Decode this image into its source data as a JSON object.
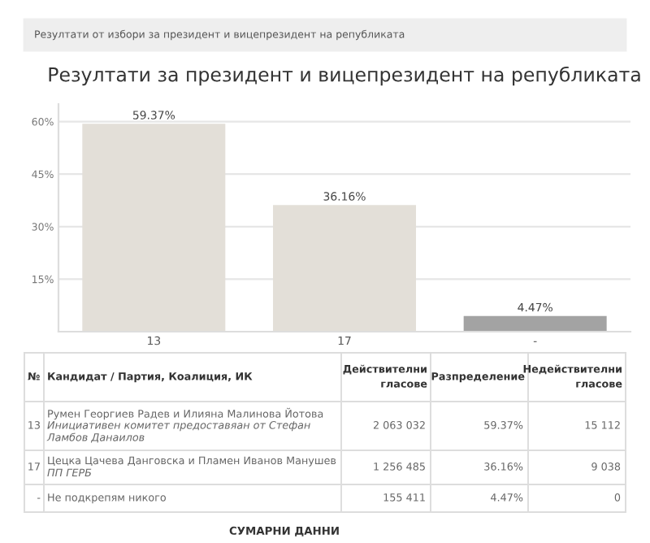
{
  "chart_data": {
    "type": "bar",
    "title": "Резултати за президент и вицепрезидент на републиката",
    "categories": [
      "13",
      "17",
      "-"
    ],
    "values": [
      59.37,
      36.16,
      4.47
    ],
    "colors": [
      "#e3dfd8",
      "#e3dfd8",
      "#a3a3a3"
    ],
    "value_labels": [
      "59.37%",
      "36.16%",
      "4.47%"
    ],
    "ylim": [
      0,
      65
    ],
    "yticks": [
      {
        "value": 15,
        "label": "15%"
      },
      {
        "value": 30,
        "label": "30%"
      },
      {
        "value": 45,
        "label": "45%"
      },
      {
        "value": 60,
        "label": "60%"
      }
    ],
    "grid": "y",
    "annotations": [
      "Резултати от избори за президент и вицепрезидент на републиката",
      "№",
      "Кандидат / Партия, Коалиция, ИК",
      "Действителни\nгласове",
      "Разпределение",
      "Недействителни\nгласове",
      "13",
      "Румен Георгиев Радев и Илияна Малинова Йотова\nИнициативен комитет предоставяан от Стефан\nЛамбов Данаилов",
      "2 063 032",
      "15 112",
      "17",
      "Цецка Цачева Данговска и Пламен Иванов Манушев\nПП ГЕРБ",
      "1 256 485",
      "9 038",
      "-",
      "Не подкрепям никого",
      "155 411",
      "0",
      "СУМАРНИ ДАННИ"
    ]
  }
}
